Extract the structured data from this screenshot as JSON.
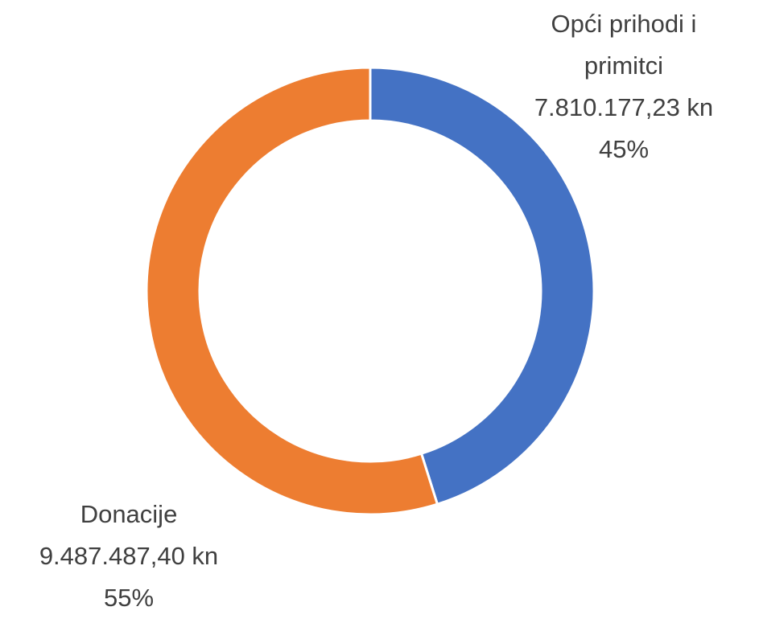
{
  "chart_data": {
    "type": "donut",
    "categories": [
      "Opći prihodi i primitci",
      "Donacije"
    ],
    "values": [
      7810177.23,
      9487487.4
    ],
    "value_labels": [
      "7.810.177,23 kn",
      "9.487.487,40 kn"
    ],
    "percents": [
      45,
      55
    ],
    "percent_labels": [
      "45%",
      "55%"
    ],
    "colors": [
      "#4472c4",
      "#ed7d31"
    ]
  }
}
